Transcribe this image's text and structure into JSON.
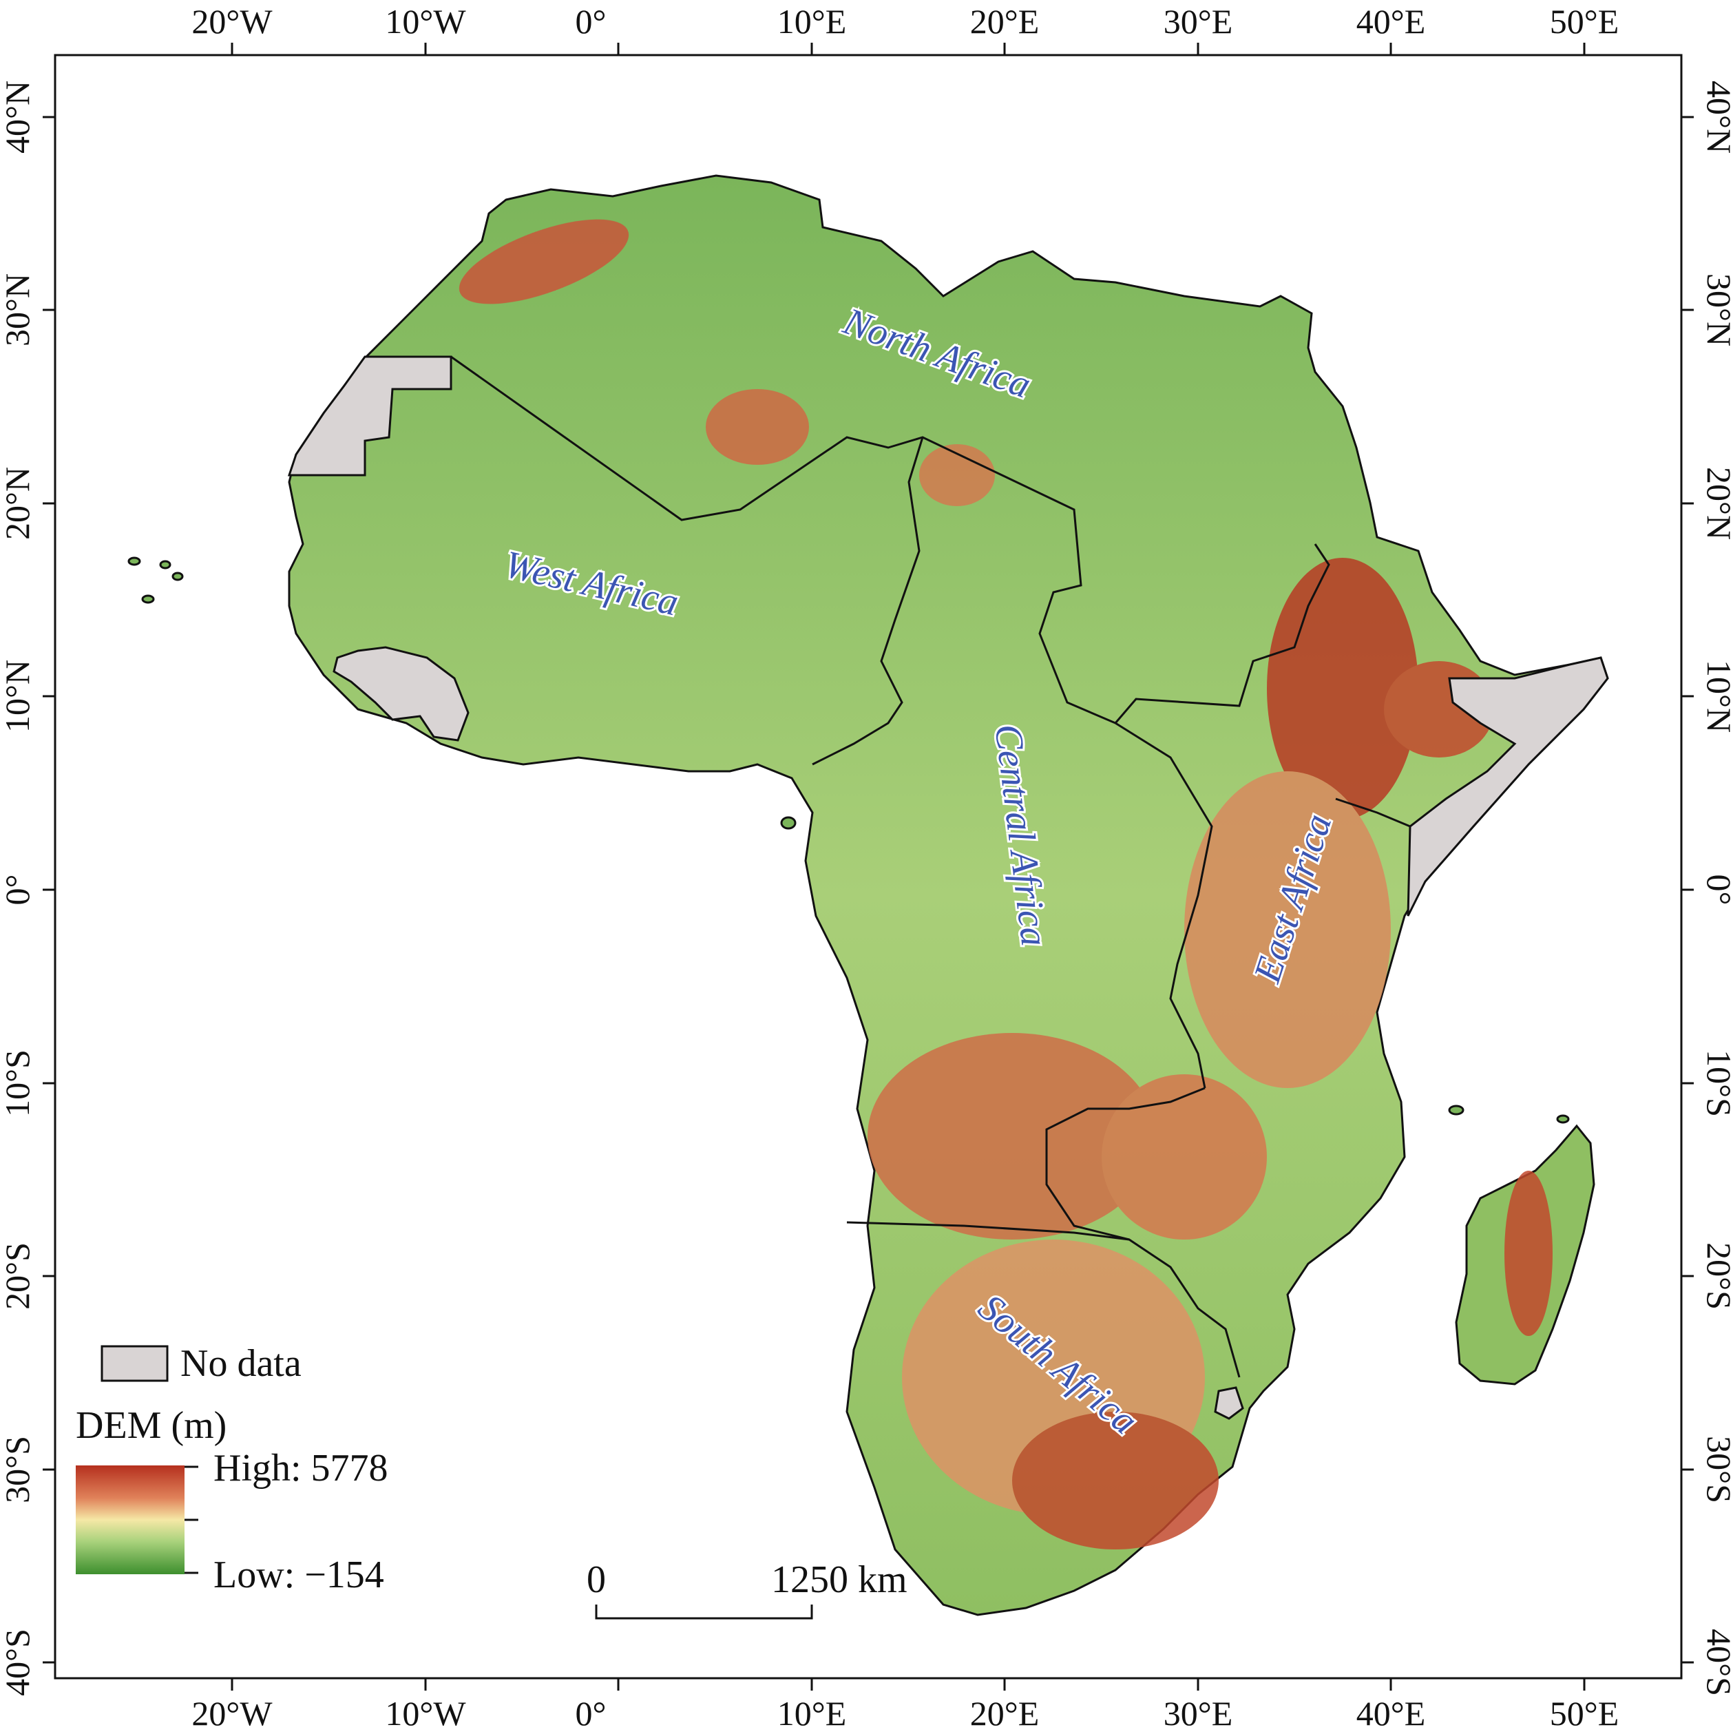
{
  "axes": {
    "top_ticks": [
      "20°W",
      "10°W",
      "0°",
      "10°E",
      "20°E",
      "30°E",
      "40°E",
      "50°E"
    ],
    "bottom_ticks": [
      "20°W",
      "10°W",
      "0°",
      "10°E",
      "20°E",
      "30°E",
      "40°E",
      "50°E"
    ],
    "left_ticks": [
      "40°N",
      "30°N",
      "20°N",
      "10°N",
      "0°",
      "10°S",
      "20°S",
      "30°S",
      "40°S"
    ],
    "right_ticks": [
      "40°N",
      "30°N",
      "20°N",
      "10°N",
      "0°",
      "10°S",
      "20°S",
      "30°S",
      "40°S"
    ]
  },
  "regions": {
    "north": "North Africa",
    "west": "West Africa",
    "central": "Central Africa",
    "east": "East Africa",
    "south": "South Africa"
  },
  "legend": {
    "no_data_label": "No data",
    "dem_title": "DEM (m)",
    "high_label": "High: 5778",
    "low_label": "Low: −154",
    "colors": {
      "no_data": "#d9d4d4",
      "high": "#b5301e",
      "mid": "#f2f0a8",
      "low": "#3d8f2e"
    }
  },
  "scale_bar": {
    "start_label": "0",
    "end_label": "1250 km"
  },
  "colors": {
    "region_label": "#3b55b3",
    "border": "#111111"
  }
}
